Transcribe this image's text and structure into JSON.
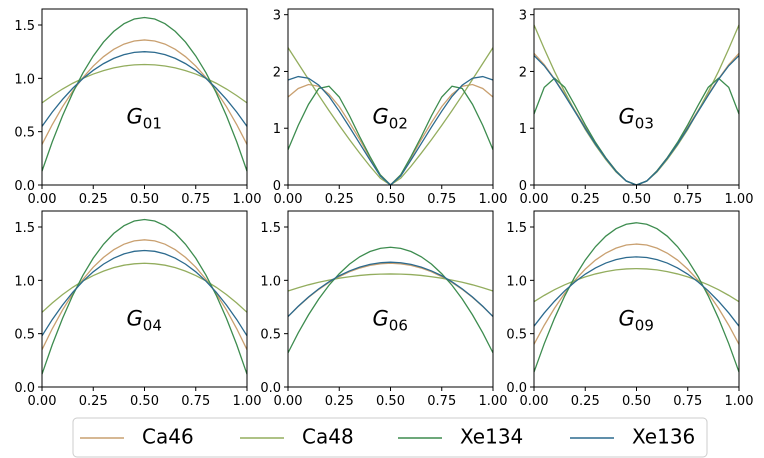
{
  "chart_data": [
    {
      "type": "line",
      "annotation": {
        "text": "G",
        "subscript": "01"
      },
      "x": [
        0,
        0.05,
        0.1,
        0.15,
        0.2,
        0.25,
        0.3,
        0.35,
        0.4,
        0.45,
        0.5,
        0.55,
        0.6,
        0.65,
        0.7,
        0.75,
        0.8,
        0.85,
        0.9,
        0.95,
        1
      ],
      "xlim": [
        0,
        1
      ],
      "xticks": [
        {
          "value": 0,
          "label": "0.00"
        },
        0.25,
        {
          "value": 0.5,
          "label": "0.50"
        },
        0.75,
        {
          "value": 1,
          "label": "1.00"
        }
      ],
      "ylim": [
        0,
        1.65
      ],
      "yticks": [
        {
          "value": 0,
          "label": "0.0"
        },
        0.5,
        {
          "value": 1,
          "label": "1.0"
        },
        1.5
      ],
      "legend": "below",
      "series": [
        {
          "name": "Ca46",
          "color": "#c9a070",
          "values": [
            0.38,
            0.566,
            0.733,
            0.88,
            1.007,
            1.115,
            1.203,
            1.272,
            1.321,
            1.35,
            1.36,
            1.35,
            1.321,
            1.272,
            1.203,
            1.115,
            1.007,
            0.88,
            0.733,
            0.566,
            0.38
          ]
        },
        {
          "name": "Ca48",
          "color": "#93ad5e",
          "values": [
            0.77,
            0.838,
            0.9,
            0.954,
            1.0,
            1.04,
            1.072,
            1.098,
            1.116,
            1.126,
            1.13,
            1.126,
            1.116,
            1.098,
            1.072,
            1.04,
            1.0,
            0.954,
            0.9,
            0.838,
            0.77
          ]
        },
        {
          "name": "Xe134",
          "color": "#3d8c4f",
          "values": [
            0.13,
            0.404,
            0.648,
            0.864,
            1.052,
            1.21,
            1.34,
            1.44,
            1.512,
            1.556,
            1.57,
            1.556,
            1.512,
            1.44,
            1.34,
            1.21,
            1.052,
            0.864,
            0.648,
            0.404,
            0.13
          ]
        },
        {
          "name": "Xe136",
          "color": "#2c6a8e",
          "values": [
            0.55,
            0.683,
            0.802,
            0.907,
            0.998,
            1.075,
            1.138,
            1.187,
            1.222,
            1.243,
            1.25,
            1.243,
            1.222,
            1.187,
            1.138,
            1.075,
            0.998,
            0.907,
            0.802,
            0.683,
            0.55
          ]
        }
      ]
    },
    {
      "type": "line",
      "annotation": {
        "text": "G",
        "subscript": "02"
      },
      "x": [
        0,
        0.05,
        0.1,
        0.15,
        0.2,
        0.25,
        0.3,
        0.35,
        0.4,
        0.45,
        0.5,
        0.55,
        0.6,
        0.65,
        0.7,
        0.75,
        0.8,
        0.85,
        0.9,
        0.95,
        1
      ],
      "xlim": [
        0,
        1
      ],
      "xticks": [
        {
          "value": 0,
          "label": "0.00"
        },
        0.25,
        {
          "value": 0.5,
          "label": "0.50"
        },
        0.75,
        {
          "value": 1,
          "label": "1.00"
        }
      ],
      "ylim": [
        0,
        3.1
      ],
      "yticks": [
        0,
        1,
        2,
        3
      ],
      "series": [
        {
          "name": "Ca46",
          "color": "#c9a070",
          "values": [
            1.55,
            1.7,
            1.77,
            1.74,
            1.6,
            1.38,
            1.1,
            0.8,
            0.48,
            0.18,
            0,
            0.18,
            0.48,
            0.8,
            1.1,
            1.38,
            1.6,
            1.74,
            1.77,
            1.7,
            1.55
          ]
        },
        {
          "name": "Ca48",
          "color": "#93ad5e",
          "values": [
            2.42,
            2.14,
            1.86,
            1.58,
            1.31,
            1.05,
            0.8,
            0.56,
            0.33,
            0.12,
            0,
            0.12,
            0.33,
            0.56,
            0.8,
            1.05,
            1.31,
            1.58,
            1.86,
            2.14,
            2.42
          ]
        },
        {
          "name": "Xe134",
          "color": "#3d8c4f",
          "values": [
            0.62,
            1.05,
            1.42,
            1.7,
            1.74,
            1.55,
            1.22,
            0.85,
            0.5,
            0.18,
            0,
            0.18,
            0.5,
            0.85,
            1.22,
            1.55,
            1.74,
            1.7,
            1.42,
            1.05,
            0.62
          ]
        },
        {
          "name": "Xe136",
          "color": "#2c6a8e",
          "values": [
            1.85,
            1.91,
            1.88,
            1.76,
            1.56,
            1.3,
            1.02,
            0.73,
            0.44,
            0.16,
            0,
            0.16,
            0.44,
            0.73,
            1.02,
            1.3,
            1.56,
            1.76,
            1.88,
            1.91,
            1.85
          ]
        }
      ]
    },
    {
      "type": "line",
      "annotation": {
        "text": "G",
        "subscript": "03"
      },
      "x": [
        0,
        0.05,
        0.1,
        0.15,
        0.2,
        0.25,
        0.3,
        0.35,
        0.4,
        0.45,
        0.5,
        0.55,
        0.6,
        0.65,
        0.7,
        0.75,
        0.8,
        0.85,
        0.9,
        0.95,
        1
      ],
      "xlim": [
        0,
        1
      ],
      "xticks": [
        {
          "value": 0,
          "label": "0.00"
        },
        0.25,
        {
          "value": 0.5,
          "label": "0.50"
        },
        0.75,
        {
          "value": 1,
          "label": "1.00"
        }
      ],
      "ylim": [
        0,
        3.1
      ],
      "yticks": [
        0,
        1,
        2,
        3
      ],
      "series": [
        {
          "name": "Ca46",
          "color": "#c9a070",
          "values": [
            2.32,
            2.12,
            1.87,
            1.6,
            1.31,
            1.02,
            0.74,
            0.48,
            0.25,
            0.07,
            0,
            0.07,
            0.25,
            0.48,
            0.74,
            1.02,
            1.31,
            1.6,
            1.87,
            2.12,
            2.32
          ]
        },
        {
          "name": "Ca48",
          "color": "#93ad5e",
          "values": [
            2.82,
            2.4,
            2.0,
            1.64,
            1.3,
            0.98,
            0.7,
            0.45,
            0.23,
            0.07,
            0,
            0.07,
            0.23,
            0.45,
            0.7,
            0.98,
            1.3,
            1.64,
            2.0,
            2.4,
            2.82
          ]
        },
        {
          "name": "Xe134",
          "color": "#3d8c4f",
          "values": [
            1.25,
            1.72,
            1.88,
            1.72,
            1.4,
            1.06,
            0.75,
            0.48,
            0.25,
            0.07,
            0,
            0.07,
            0.25,
            0.48,
            0.75,
            1.06,
            1.4,
            1.72,
            1.88,
            1.72,
            1.25
          ]
        },
        {
          "name": "Xe136",
          "color": "#2c6a8e",
          "values": [
            2.28,
            2.1,
            1.86,
            1.58,
            1.29,
            1.0,
            0.72,
            0.47,
            0.24,
            0.07,
            0,
            0.07,
            0.24,
            0.47,
            0.72,
            1.0,
            1.29,
            1.58,
            1.86,
            2.1,
            2.28
          ]
        }
      ]
    },
    {
      "type": "line",
      "annotation": {
        "text": "G",
        "subscript": "04"
      },
      "x": [
        0,
        0.05,
        0.1,
        0.15,
        0.2,
        0.25,
        0.3,
        0.35,
        0.4,
        0.45,
        0.5,
        0.55,
        0.6,
        0.65,
        0.7,
        0.75,
        0.8,
        0.85,
        0.9,
        0.95,
        1
      ],
      "xlim": [
        0,
        1
      ],
      "xticks": [
        {
          "value": 0,
          "label": "0.00"
        },
        0.25,
        {
          "value": 0.5,
          "label": "0.50"
        },
        0.75,
        {
          "value": 1,
          "label": "1.00"
        }
      ],
      "ylim": [
        0,
        1.65
      ],
      "yticks": [
        {
          "value": 0,
          "label": "0.0"
        },
        0.5,
        {
          "value": 1,
          "label": "1.0"
        },
        1.5
      ],
      "series": [
        {
          "name": "Ca46",
          "color": "#c9a070",
          "values": [
            0.35,
            0.546,
            0.721,
            0.875,
            1.009,
            1.123,
            1.215,
            1.287,
            1.339,
            1.37,
            1.38,
            1.37,
            1.339,
            1.287,
            1.215,
            1.123,
            1.009,
            0.875,
            0.721,
            0.546,
            0.35
          ]
        },
        {
          "name": "Ca48",
          "color": "#93ad5e",
          "values": [
            0.7,
            0.787,
            0.866,
            0.935,
            0.994,
            1.045,
            1.086,
            1.119,
            1.142,
            1.155,
            1.16,
            1.155,
            1.142,
            1.119,
            1.086,
            1.045,
            0.994,
            0.935,
            0.866,
            0.787,
            0.7
          ]
        },
        {
          "name": "Xe134",
          "color": "#3d8c4f",
          "values": [
            0.12,
            0.396,
            0.642,
            0.86,
            1.048,
            1.208,
            1.338,
            1.44,
            1.512,
            1.556,
            1.57,
            1.556,
            1.512,
            1.44,
            1.338,
            1.208,
            1.048,
            0.86,
            0.642,
            0.396,
            0.12
          ]
        },
        {
          "name": "Xe136",
          "color": "#2c6a8e",
          "values": [
            0.48,
            0.632,
            0.768,
            0.888,
            0.992,
            1.08,
            1.152,
            1.208,
            1.248,
            1.272,
            1.28,
            1.272,
            1.248,
            1.208,
            1.152,
            1.08,
            0.992,
            0.888,
            0.768,
            0.632,
            0.48
          ]
        }
      ]
    },
    {
      "type": "line",
      "annotation": {
        "text": "G",
        "subscript": "06"
      },
      "x": [
        0,
        0.05,
        0.1,
        0.15,
        0.2,
        0.25,
        0.3,
        0.35,
        0.4,
        0.45,
        0.5,
        0.55,
        0.6,
        0.65,
        0.7,
        0.75,
        0.8,
        0.85,
        0.9,
        0.95,
        1
      ],
      "xlim": [
        0,
        1
      ],
      "xticks": [
        {
          "value": 0,
          "label": "0.00"
        },
        0.25,
        {
          "value": 0.5,
          "label": "0.50"
        },
        0.75,
        {
          "value": 1,
          "label": "1.00"
        }
      ],
      "ylim": [
        0,
        1.65
      ],
      "yticks": [
        {
          "value": 0,
          "label": "0.0"
        },
        0.5,
        {
          "value": 1,
          "label": "1.0"
        },
        1.5
      ],
      "series": [
        {
          "name": "Ca46",
          "color": "#c9a070",
          "values": [
            0.66,
            0.755,
            0.84,
            0.915,
            0.98,
            1.035,
            1.08,
            1.115,
            1.14,
            1.155,
            1.16,
            1.155,
            1.14,
            1.115,
            1.08,
            1.035,
            0.98,
            0.915,
            0.84,
            0.755,
            0.66
          ]
        },
        {
          "name": "Ca48",
          "color": "#93ad5e",
          "values": [
            0.9,
            0.93,
            0.958,
            0.982,
            1.002,
            1.02,
            1.034,
            1.046,
            1.054,
            1.058,
            1.06,
            1.058,
            1.054,
            1.046,
            1.034,
            1.02,
            1.002,
            0.982,
            0.958,
            0.93,
            0.9
          ]
        },
        {
          "name": "Xe134",
          "color": "#3d8c4f",
          "values": [
            0.32,
            0.508,
            0.676,
            0.825,
            0.954,
            1.062,
            1.152,
            1.221,
            1.27,
            1.3,
            1.31,
            1.3,
            1.27,
            1.221,
            1.152,
            1.062,
            0.954,
            0.825,
            0.676,
            0.508,
            0.32
          ]
        },
        {
          "name": "Xe136",
          "color": "#2c6a8e",
          "values": [
            0.66,
            0.757,
            0.844,
            0.92,
            0.986,
            1.043,
            1.088,
            1.124,
            1.15,
            1.165,
            1.17,
            1.165,
            1.15,
            1.124,
            1.088,
            1.043,
            0.986,
            0.92,
            0.844,
            0.757,
            0.66
          ]
        }
      ]
    },
    {
      "type": "line",
      "annotation": {
        "text": "G",
        "subscript": "09"
      },
      "x": [
        0,
        0.05,
        0.1,
        0.15,
        0.2,
        0.25,
        0.3,
        0.35,
        0.4,
        0.45,
        0.5,
        0.55,
        0.6,
        0.65,
        0.7,
        0.75,
        0.8,
        0.85,
        0.9,
        0.95,
        1
      ],
      "xlim": [
        0,
        1
      ],
      "xticks": [
        {
          "value": 0,
          "label": "0.00"
        },
        0.25,
        {
          "value": 0.5,
          "label": "0.50"
        },
        0.75,
        {
          "value": 1,
          "label": "1.00"
        }
      ],
      "ylim": [
        0,
        1.65
      ],
      "yticks": [
        {
          "value": 0,
          "label": "0.0"
        },
        0.5,
        {
          "value": 1,
          "label": "1.0"
        },
        1.5
      ],
      "series": [
        {
          "name": "Ca46",
          "color": "#c9a070",
          "values": [
            0.4,
            0.579,
            0.738,
            0.879,
            1.002,
            1.105,
            1.19,
            1.255,
            1.302,
            1.331,
            1.34,
            1.331,
            1.302,
            1.255,
            1.19,
            1.105,
            1.002,
            0.879,
            0.738,
            0.579,
            0.4
          ]
        },
        {
          "name": "Ca48",
          "color": "#93ad5e",
          "values": [
            0.8,
            0.859,
            0.912,
            0.958,
            0.998,
            1.032,
            1.06,
            1.082,
            1.098,
            1.107,
            1.11,
            1.107,
            1.098,
            1.082,
            1.06,
            1.032,
            0.998,
            0.958,
            0.912,
            0.859,
            0.8
          ]
        },
        {
          "name": "Xe134",
          "color": "#3d8c4f",
          "values": [
            0.14,
            0.406,
            0.644,
            0.854,
            1.036,
            1.19,
            1.316,
            1.414,
            1.484,
            1.526,
            1.54,
            1.526,
            1.484,
            1.414,
            1.316,
            1.19,
            1.036,
            0.854,
            0.644,
            0.406,
            0.14
          ]
        },
        {
          "name": "Xe136",
          "color": "#2c6a8e",
          "values": [
            0.57,
            0.694,
            0.804,
            0.902,
            0.986,
            1.058,
            1.116,
            1.162,
            1.194,
            1.214,
            1.22,
            1.214,
            1.194,
            1.162,
            1.116,
            1.058,
            0.986,
            0.902,
            0.804,
            0.694,
            0.57
          ]
        }
      ]
    }
  ]
}
